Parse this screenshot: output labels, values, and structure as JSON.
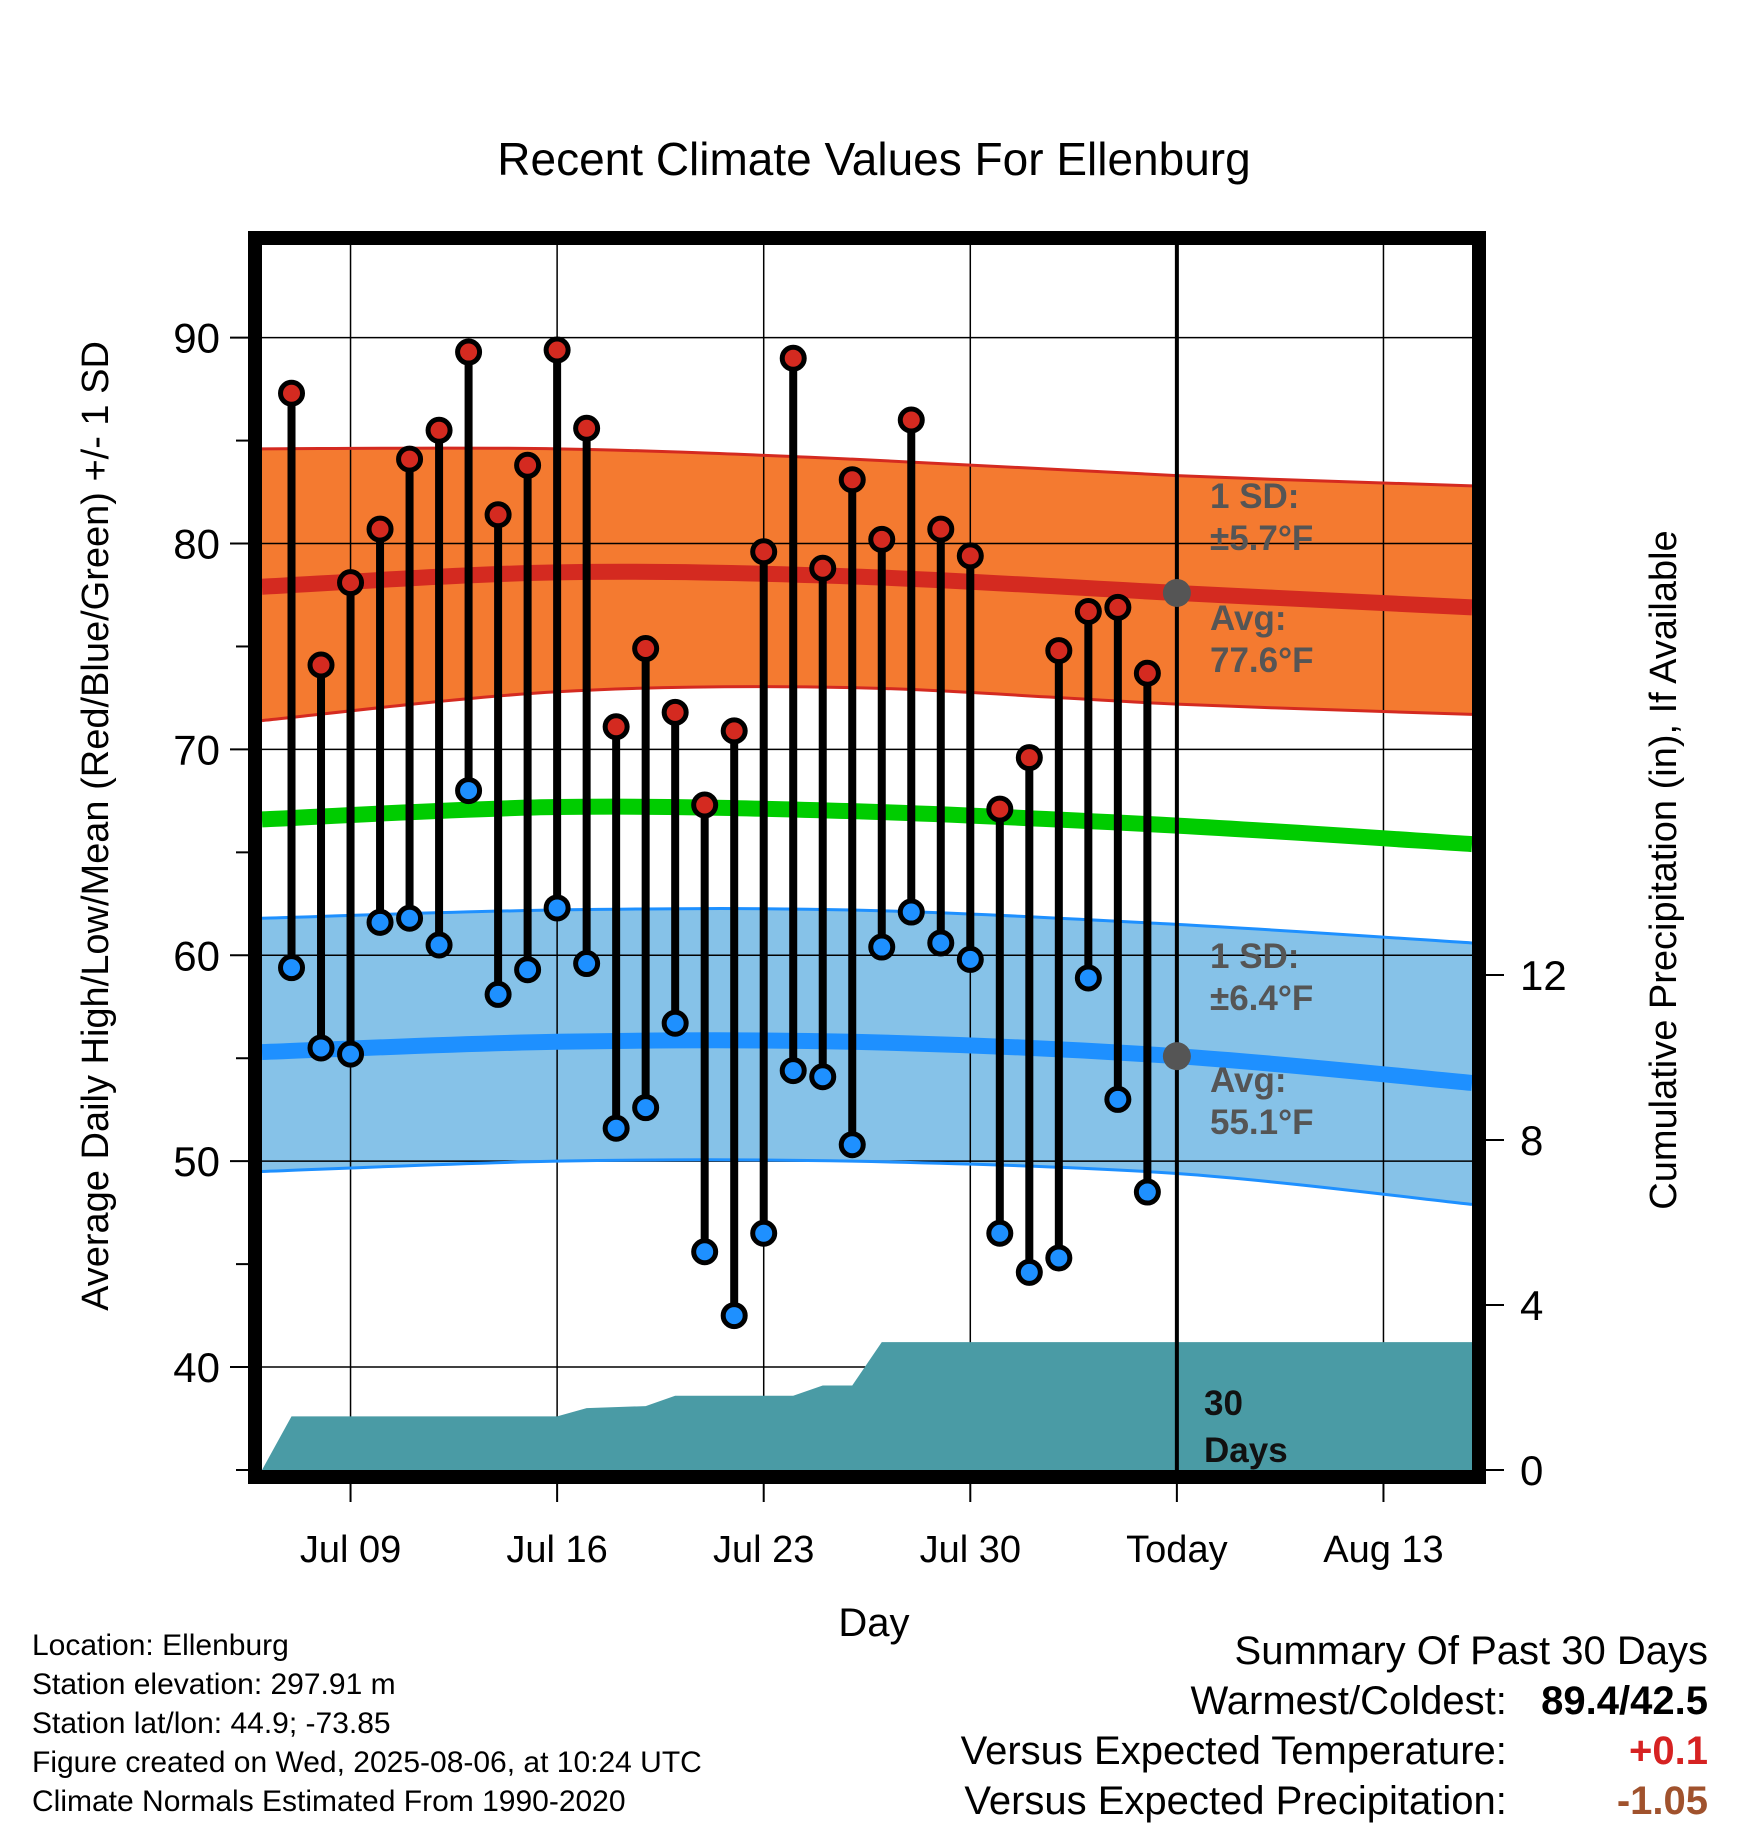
{
  "chart_data": {
    "type": "line",
    "title": "Recent Climate Values For Ellenburg",
    "xlabel": "Day",
    "ylabel": "Average Daily High/Low/Mean (Red/Blue/Green) +/- 1 SD",
    "y2label": "Cumulative Precipitation (in), If Available",
    "x_range": [
      "2025-07-06",
      "2025-08-16"
    ],
    "ylim": [
      35,
      94.5
    ],
    "y_ticks": [
      40,
      50,
      60,
      70,
      80,
      90
    ],
    "y2lim": [
      0,
      29.7
    ],
    "y2_ticks": [
      0,
      4,
      8,
      12
    ],
    "x_ticks": [
      {
        "date": "2025-07-09",
        "label": "Jul 09"
      },
      {
        "date": "2025-07-16",
        "label": "Jul 16"
      },
      {
        "date": "2025-07-23",
        "label": "Jul 23"
      },
      {
        "date": "2025-07-30",
        "label": "Jul 30"
      },
      {
        "date": "2025-08-06",
        "label": "Today"
      },
      {
        "date": "2025-08-13",
        "label": "Aug 13"
      }
    ],
    "today": "2025-08-06",
    "grid": true,
    "daily": {
      "dates": [
        "2025-07-07",
        "2025-07-08",
        "2025-07-09",
        "2025-07-10",
        "2025-07-11",
        "2025-07-12",
        "2025-07-13",
        "2025-07-14",
        "2025-07-15",
        "2025-07-16",
        "2025-07-17",
        "2025-07-18",
        "2025-07-19",
        "2025-07-20",
        "2025-07-21",
        "2025-07-22",
        "2025-07-23",
        "2025-07-24",
        "2025-07-25",
        "2025-07-26",
        "2025-07-27",
        "2025-07-28",
        "2025-07-29",
        "2025-07-30",
        "2025-07-31",
        "2025-08-01",
        "2025-08-02",
        "2025-08-03",
        "2025-08-04",
        "2025-08-05"
      ],
      "highs": [
        87.3,
        74.1,
        78.1,
        80.7,
        84.1,
        85.5,
        89.3,
        81.4,
        83.8,
        89.4,
        85.6,
        71.1,
        74.9,
        71.8,
        67.3,
        70.9,
        79.6,
        89.0,
        78.8,
        83.1,
        80.2,
        86.0,
        80.7,
        79.4,
        67.1,
        69.6,
        74.8,
        76.7,
        76.9,
        73.7
      ],
      "lows": [
        59.4,
        55.5,
        55.2,
        61.6,
        61.8,
        60.5,
        68.0,
        58.1,
        59.3,
        62.3,
        59.6,
        51.6,
        52.6,
        56.7,
        45.6,
        42.5,
        46.5,
        54.4,
        54.1,
        50.8,
        60.4,
        62.1,
        60.6,
        59.8,
        46.5,
        44.6,
        45.3,
        58.9,
        53.0,
        48.5
      ]
    },
    "series": [
      {
        "name": "Avg High",
        "color": "#d42a20",
        "x": [
          "2025-07-06",
          "2025-07-16",
          "2025-07-26",
          "2025-08-06",
          "2025-08-16"
        ],
        "values": [
          77.9,
          78.6,
          78.4,
          77.6,
          76.9
        ]
      },
      {
        "name": "High 1 SD upper",
        "color": "#d42a20",
        "x": [
          "2025-07-06",
          "2025-07-16",
          "2025-07-26",
          "2025-08-06",
          "2025-08-16"
        ],
        "values": [
          84.6,
          84.6,
          84.1,
          83.3,
          82.8
        ]
      },
      {
        "name": "High 1 SD lower",
        "color": "#d42a20",
        "x": [
          "2025-07-06",
          "2025-07-16",
          "2025-07-26",
          "2025-08-06",
          "2025-08-16"
        ],
        "values": [
          71.4,
          72.8,
          73.0,
          72.2,
          71.7
        ]
      },
      {
        "name": "Avg Mean",
        "color": "#00cc00",
        "x": [
          "2025-07-06",
          "2025-07-16",
          "2025-07-26",
          "2025-08-06",
          "2025-08-16"
        ],
        "values": [
          66.6,
          67.2,
          67.0,
          66.3,
          65.4
        ]
      },
      {
        "name": "Avg Low",
        "color": "#1e90ff",
        "x": [
          "2025-07-06",
          "2025-07-16",
          "2025-07-26",
          "2025-08-06",
          "2025-08-16"
        ],
        "values": [
          55.3,
          55.8,
          55.8,
          55.1,
          53.8
        ]
      },
      {
        "name": "Low 1 SD upper",
        "color": "#1e90ff",
        "x": [
          "2025-07-06",
          "2025-07-16",
          "2025-07-26",
          "2025-08-06",
          "2025-08-16"
        ],
        "values": [
          61.8,
          62.2,
          62.2,
          61.5,
          60.6
        ]
      },
      {
        "name": "Low 1 SD lower",
        "color": "#1e90ff",
        "x": [
          "2025-07-06",
          "2025-07-16",
          "2025-07-26",
          "2025-08-06",
          "2025-08-16"
        ],
        "values": [
          49.5,
          50.0,
          50.0,
          49.4,
          47.9
        ]
      }
    ],
    "precip": {
      "color": "#4a9ba5",
      "x": [
        "2025-07-06",
        "2025-07-07",
        "2025-07-16",
        "2025-07-17",
        "2025-07-19",
        "2025-07-20",
        "2025-07-24",
        "2025-07-25",
        "2025-07-26",
        "2025-07-27",
        "2025-08-16"
      ],
      "values": [
        0,
        1.3,
        1.3,
        1.5,
        1.55,
        1.8,
        1.8,
        2.05,
        2.05,
        3.1,
        3.1
      ]
    },
    "annotations": {
      "high_sd": "1 SD:",
      "high_sd_val": "±5.7°F",
      "high_avg": "Avg:",
      "high_avg_val": "77.6°F",
      "low_sd": "1 SD:",
      "low_sd_val": "±6.4°F",
      "low_avg": "Avg:",
      "low_avg_val": "55.1°F",
      "days_num": "30",
      "days_word": "Days"
    }
  },
  "footer": {
    "location": "Location: Ellenburg",
    "elevation": "Station elevation: 297.91 m",
    "latlon": "Station lat/lon: 44.9; -73.85",
    "created": "Figure created on Wed, 2025-08-06, at 10:24 UTC",
    "normals": "Climate Normals Estimated From 1990-2020"
  },
  "summary": {
    "title": "Summary Of Past 30 Days",
    "warmest_label": "Warmest/Coldest:",
    "warmest_value": "89.4/42.5",
    "temp_label": "Versus Expected Temperature:",
    "temp_value": "+0.1",
    "precip_label": "Versus Expected Precipitation:",
    "precip_value": "-1.05",
    "temp_color": "#d62222",
    "precip_color": "#a0522d"
  }
}
